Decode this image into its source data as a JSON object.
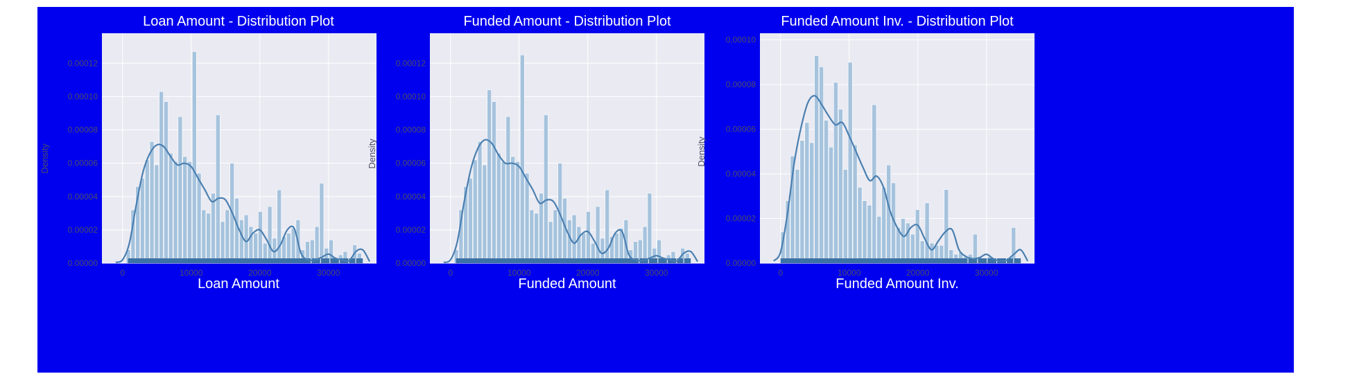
{
  "figure": {
    "background_color": "#0000ee",
    "plot_background_color": "#eaeaf2",
    "bar_color": "#a6c3dd",
    "line_color": "#4a7fb0",
    "rug_color": "#3d72a4",
    "title_color": "#ffffff",
    "xlabel_color": "#ffffff",
    "tick_color": "#4b4b6b"
  },
  "chart_data": [
    {
      "type": "histogram",
      "title": "Loan Amount - Distribution Plot",
      "xlabel": "Loan Amount",
      "ylabel": "Density",
      "xlim": [
        -3000,
        37000
      ],
      "ylim": [
        0,
        0.000138
      ],
      "x_ticks": [
        0,
        10000,
        20000,
        30000
      ],
      "x_tick_labels": [
        "0",
        "10000",
        "20000",
        "30000"
      ],
      "y_ticks": [
        0,
        2e-05,
        4e-05,
        6e-05,
        8e-05,
        0.0001,
        0.00012
      ],
      "y_tick_labels": [
        "0.00000",
        "0.00002",
        "0.00004",
        "0.00006",
        "0.00008",
        "0.00010",
        "0.00012"
      ],
      "grid": true,
      "legend": "none",
      "bin_edges": [
        500,
        1187,
        1874,
        2561,
        3248,
        3935,
        4622,
        5309,
        5996,
        6683,
        7370,
        8057,
        8744,
        9431,
        10118,
        10805,
        11492,
        12179,
        12866,
        13553,
        14240,
        14927,
        15614,
        16301,
        16988,
        17675,
        18362,
        19049,
        19736,
        20423,
        21110,
        21797,
        22484,
        23171,
        23858,
        24545,
        25232,
        25919,
        26606,
        27293,
        27980,
        28667,
        29354,
        30041,
        30728,
        31415,
        32102,
        32789,
        33476,
        34163,
        34850
      ],
      "bin_densities": [
        8e-06,
        3.2e-05,
        4.6e-05,
        5.1e-05,
        6.2e-05,
        7.3e-05,
        5.9e-05,
        0.000103,
        9.7e-05,
        6.6e-05,
        6.1e-05,
        8.8e-05,
        6.4e-05,
        6.1e-05,
        0.000127,
        5.4e-05,
        3.2e-05,
        3e-05,
        4.2e-05,
        8.9e-05,
        2.5e-05,
        3.2e-05,
        6e-05,
        3.9e-05,
        2.6e-05,
        2.9e-05,
        2.2e-05,
        1.8e-05,
        3.1e-05,
        1.2e-05,
        3.4e-05,
        1.5e-05,
        4.4e-05,
        1.6e-05,
        1.8e-05,
        2.1e-05,
        2.6e-05,
        8e-06,
        1.3e-05,
        1.4e-05,
        2.2e-05,
        4.8e-05,
        9e-06,
        1.4e-05,
        3e-06,
        5e-06,
        7e-06,
        2e-06,
        1.1e-05,
        6e-06
      ],
      "kde": {
        "x": [
          -1000,
          0,
          1000,
          2000,
          3000,
          4000,
          5000,
          6000,
          7000,
          8000,
          9000,
          10000,
          11000,
          12000,
          13000,
          14000,
          15000,
          16000,
          17000,
          18000,
          19000,
          20000,
          21000,
          22000,
          23000,
          24000,
          25000,
          26000,
          27000,
          28000,
          29000,
          30000,
          31000,
          32000,
          33000,
          34000,
          35000,
          36000
        ],
        "y": [
          5e-07,
          2e-06,
          1.2e-05,
          3.5e-05,
          5.5e-05,
          6.6e-05,
          7.1e-05,
          7e-05,
          6.4e-05,
          5.9e-05,
          6e-05,
          5.8e-05,
          5.1e-05,
          4.4e-05,
          3.7e-05,
          3.9e-05,
          3.8e-05,
          3e-05,
          2e-05,
          1.3e-05,
          1.8e-05,
          2e-05,
          1.4e-05,
          7e-06,
          1.1e-05,
          2e-05,
          2.1e-05,
          6e-06,
          2e-06,
          2e-06,
          3.5e-06,
          5.5e-06,
          3e-06,
          2e-06,
          1.5e-06,
          7e-06,
          8e-06,
          1e-06
        ]
      },
      "rug": [
        800,
        35000
      ]
    },
    {
      "type": "histogram",
      "title": "Funded Amount - Distribution Plot",
      "xlabel": "Funded Amount",
      "ylabel": "Density",
      "xlim": [
        -3000,
        37000
      ],
      "ylim": [
        0,
        0.000138
      ],
      "x_ticks": [
        0,
        10000,
        20000,
        30000
      ],
      "x_tick_labels": [
        "0",
        "10000",
        "20000",
        "30000"
      ],
      "y_ticks": [
        0,
        2e-05,
        4e-05,
        6e-05,
        8e-05,
        0.0001,
        0.00012
      ],
      "y_tick_labels": [
        "0.00000",
        "0.00002",
        "0.00004",
        "0.00006",
        "0.00008",
        "0.00010",
        "0.00012"
      ],
      "grid": true,
      "legend": "none",
      "bin_edges": [
        500,
        1187,
        1874,
        2561,
        3248,
        3935,
        4622,
        5309,
        5996,
        6683,
        7370,
        8057,
        8744,
        9431,
        10118,
        10805,
        11492,
        12179,
        12866,
        13553,
        14240,
        14927,
        15614,
        16301,
        16988,
        17675,
        18362,
        19049,
        19736,
        20423,
        21110,
        21797,
        22484,
        23171,
        23858,
        24545,
        25232,
        25919,
        26606,
        27293,
        27980,
        28667,
        29354,
        30041,
        30728,
        31415,
        32102,
        32789,
        33476,
        34163,
        34850
      ],
      "bin_densities": [
        8e-06,
        3.2e-05,
        4.6e-05,
        5.1e-05,
        6.2e-05,
        7.3e-05,
        5.9e-05,
        0.000104,
        9.7e-05,
        6.6e-05,
        6.1e-05,
        8.8e-05,
        6.4e-05,
        6.1e-05,
        0.000125,
        5.4e-05,
        3.2e-05,
        3e-05,
        4.2e-05,
        8.9e-05,
        2.5e-05,
        3.2e-05,
        6e-05,
        3.9e-05,
        2.6e-05,
        2.9e-05,
        2.2e-05,
        1.8e-05,
        3.1e-05,
        1.2e-05,
        3.4e-05,
        1.5e-05,
        4.4e-05,
        1.6e-05,
        1.8e-05,
        2.1e-05,
        2.6e-05,
        8e-06,
        1.3e-05,
        1.4e-05,
        2.2e-05,
        4.2e-05,
        9e-06,
        1.4e-05,
        3e-06,
        5e-06,
        7e-06,
        2e-06,
        9e-06,
        6e-06
      ],
      "kde": {
        "x": [
          -1000,
          0,
          1000,
          2000,
          3000,
          4000,
          5000,
          6000,
          7000,
          8000,
          9000,
          10000,
          11000,
          12000,
          13000,
          14000,
          15000,
          16000,
          17000,
          18000,
          19000,
          20000,
          21000,
          22000,
          23000,
          24000,
          25000,
          26000,
          27000,
          28000,
          29000,
          30000,
          31000,
          32000,
          33000,
          34000,
          35000,
          36000
        ],
        "y": [
          5e-07,
          2e-06,
          1.3e-05,
          3.7e-05,
          5.7e-05,
          6.9e-05,
          7.4e-05,
          7.2e-05,
          6.5e-05,
          6e-05,
          6e-05,
          5.8e-05,
          5.1e-05,
          4.4e-05,
          3.6e-05,
          3.8e-05,
          3.7e-05,
          2.9e-05,
          1.9e-05,
          1.2e-05,
          1.7e-05,
          1.9e-05,
          1.3e-05,
          6e-06,
          9e-06,
          1.8e-05,
          1.9e-05,
          5e-06,
          2e-06,
          1.5e-06,
          3e-06,
          4.5e-06,
          3e-06,
          2e-06,
          1.5e-06,
          6e-06,
          7e-06,
          1e-06
        ]
      },
      "rug": [
        800,
        35000
      ]
    },
    {
      "type": "histogram",
      "title": "Funded Amount Inv. - Distribution Plot",
      "xlabel": "Funded Amount Inv.",
      "ylabel": "Density",
      "xlim": [
        -3000,
        37000
      ],
      "ylim": [
        0,
        0.000103
      ],
      "x_ticks": [
        0,
        10000,
        20000,
        30000
      ],
      "x_tick_labels": [
        "0",
        "10000",
        "20000",
        "30000"
      ],
      "y_ticks": [
        0,
        2e-05,
        4e-05,
        6e-05,
        8e-05,
        0.0001
      ],
      "y_tick_labels": [
        "0.00000",
        "0.00002",
        "0.00004",
        "0.00006",
        "0.00008",
        "0.00010"
      ],
      "grid": true,
      "legend": "none",
      "bin_edges": [
        0,
        700,
        1400,
        2100,
        2800,
        3500,
        4200,
        4900,
        5600,
        6300,
        7000,
        7700,
        8400,
        9100,
        9800,
        10500,
        11200,
        11900,
        12600,
        13300,
        14000,
        14700,
        15400,
        16100,
        16800,
        17500,
        18200,
        18900,
        19600,
        20300,
        21000,
        21700,
        22400,
        23100,
        23800,
        24500,
        25200,
        25900,
        26600,
        27300,
        28000,
        28700,
        29400,
        30100,
        30800,
        31500,
        32200,
        32900,
        33600,
        34300,
        35000
      ],
      "bin_densities": [
        1.4e-05,
        2.8e-05,
        4.8e-05,
        4.2e-05,
        5.5e-05,
        6.3e-05,
        5.4e-05,
        9.3e-05,
        8.8e-05,
        6.4e-05,
        5.2e-05,
        8.1e-05,
        6.9e-05,
        4.2e-05,
        9e-05,
        5.3e-05,
        3.4e-05,
        2.8e-05,
        2.6e-05,
        7.1e-05,
        2.1e-05,
        3.4e-05,
        4.4e-05,
        3.6e-05,
        1.6e-05,
        2e-05,
        1.8e-05,
        1.3e-05,
        2.4e-05,
        1e-05,
        2.7e-05,
        9e-06,
        8e-06,
        8e-06,
        3.3e-05,
        6e-06,
        4e-06,
        5e-06,
        3e-06,
        4e-06,
        1.3e-05,
        3e-06,
        2e-06,
        3e-06,
        2e-06,
        1e-06,
        2e-06,
        1e-06,
        1.6e-05,
        1e-06
      ],
      "kde": {
        "x": [
          -1000,
          0,
          1000,
          2000,
          3000,
          4000,
          5000,
          6000,
          7000,
          8000,
          9000,
          10000,
          11000,
          12000,
          13000,
          14000,
          15000,
          16000,
          17000,
          18000,
          19000,
          20000,
          21000,
          22000,
          23000,
          24000,
          25000,
          26000,
          27000,
          28000,
          29000,
          30000,
          31000,
          32000,
          33000,
          34000,
          35000,
          36000
        ],
        "y": [
          1e-06,
          5e-06,
          2.2e-05,
          4.5e-05,
          6.1e-05,
          7.2e-05,
          7.5e-05,
          7.1e-05,
          6.6e-05,
          6.2e-05,
          6.3e-05,
          5.7e-05,
          5e-05,
          4.3e-05,
          3.7e-05,
          3.9e-05,
          3.4e-05,
          2.3e-05,
          1.6e-05,
          1.2e-05,
          1.6e-05,
          1.7e-05,
          1.1e-05,
          6e-06,
          1e-05,
          1.4e-05,
          1.5e-05,
          6e-06,
          3e-06,
          2e-06,
          2.5e-06,
          4e-06,
          2e-06,
          1e-06,
          1.5e-06,
          4e-06,
          6e-06,
          1e-06
        ]
      },
      "rug": [
        0,
        35000
      ]
    }
  ]
}
